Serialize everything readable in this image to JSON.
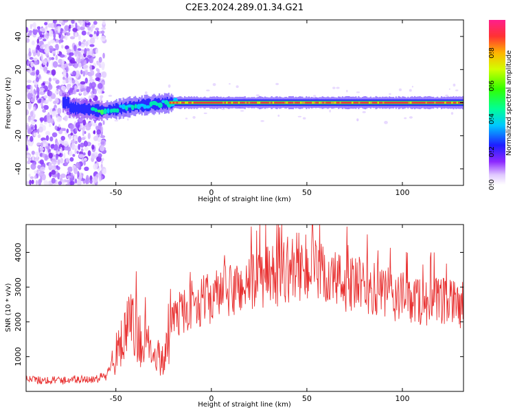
{
  "title": "C2E3.2024.289.01.34.G21",
  "chart_data": [
    {
      "type": "heatmap",
      "xlabel": "Height of straight line (km)",
      "ylabel": "Frequency (Hz)",
      "xlim": [
        -97,
        132
      ],
      "ylim": [
        -50,
        50
      ],
      "x_ticks": [
        -50,
        0,
        50,
        100
      ],
      "y_ticks": [
        -40,
        -20,
        0,
        20,
        40
      ],
      "colorbar": {
        "label": "Normalized spectral amplitude",
        "ticks": [
          "0.0",
          "0.2",
          "0.4",
          "0.6",
          "0.8"
        ],
        "range": [
          0,
          1
        ]
      },
      "line_center_profile": [
        {
          "x": -75,
          "f": -3
        },
        {
          "x": -65,
          "f": -4
        },
        {
          "x": -58,
          "f": -5
        },
        {
          "x": -50,
          "f": -4
        },
        {
          "x": -40,
          "f": -2
        },
        {
          "x": -30,
          "f": -1
        },
        {
          "x": -20,
          "f": 0
        },
        {
          "x": 0,
          "f": 0
        },
        {
          "x": 132,
          "f": 0
        }
      ],
      "noise_region": {
        "x_from": -97,
        "x_to": -56
      },
      "legend": "none"
    },
    {
      "type": "line",
      "xlabel": "Height of straight line (km)",
      "ylabel": "SNR (10 * v/v)",
      "xlim": [
        -97,
        132
      ],
      "ylim": [
        0,
        4800
      ],
      "x_ticks": [
        -50,
        0,
        50,
        100
      ],
      "y_ticks": [
        1000,
        2000,
        3000,
        4000
      ],
      "series": [
        {
          "color": "#e83030",
          "x": [
            -97,
            -90,
            -80,
            -70,
            -60,
            -55,
            -50,
            -45,
            -42,
            -40,
            -35,
            -30,
            -25,
            -22,
            -20,
            -10,
            0,
            10,
            20,
            30,
            40,
            45,
            50,
            60,
            70,
            80,
            90,
            100,
            110,
            120,
            132
          ],
          "y": [
            350,
            320,
            330,
            340,
            360,
            450,
            1100,
            1600,
            2000,
            1700,
            1300,
            1200,
            900,
            1800,
            2100,
            2500,
            2700,
            2900,
            3100,
            3300,
            3500,
            3600,
            3500,
            3300,
            3100,
            3000,
            2800,
            2700,
            2600,
            2550,
            2500
          ]
        }
      ],
      "legend": "none"
    }
  ]
}
